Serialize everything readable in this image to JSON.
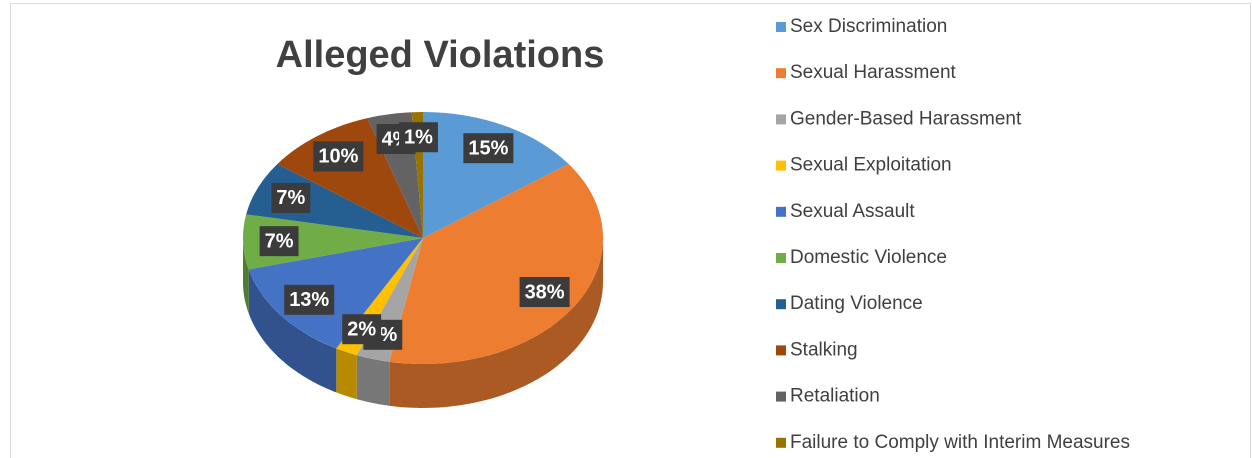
{
  "chart_data": {
    "type": "pie",
    "title": "Alleged Violations",
    "categories": [
      "Sex Discrimination",
      "Sexual Harassment",
      "Gender-Based Harassment",
      "Sexual Exploitation",
      "Sexual Assault",
      "Domestic Violence",
      "Dating Violence",
      "Stalking",
      "Retaliation",
      "Failure to Comply with Interim Measures"
    ],
    "values": [
      15,
      38,
      3,
      2,
      13,
      7,
      7,
      10,
      4,
      1
    ],
    "value_labels": [
      "15%",
      "38%",
      "3%",
      "2%",
      "13%",
      "7%",
      "7%",
      "10%",
      "4%",
      "1%"
    ],
    "colors": [
      "#5b9bd5",
      "#ed7d31",
      "#a5a5a5",
      "#ffc000",
      "#4472c4",
      "#70ad47",
      "#255e91",
      "#9e480e",
      "#636363",
      "#997300"
    ],
    "legend": "right"
  }
}
